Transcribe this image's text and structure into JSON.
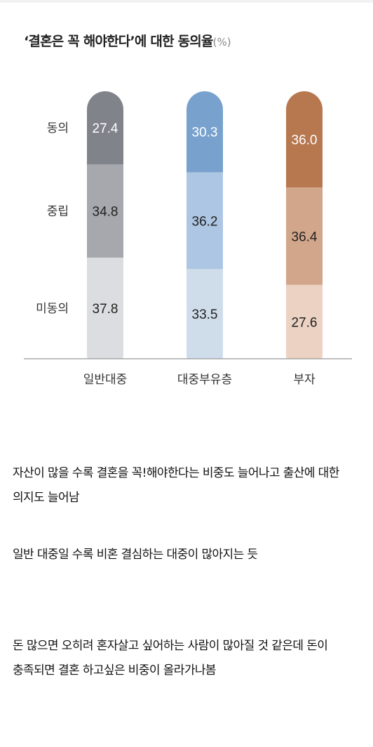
{
  "title": {
    "main": "‘결혼은 꼭 해야한다’에 대한 동의율",
    "unit": "(%)"
  },
  "chart_data": {
    "type": "bar",
    "stacked": true,
    "title": "‘결혼은 꼭 해야한다’에 대한 동의율(%)",
    "categories": [
      "일반대중",
      "대중부유층",
      "부자"
    ],
    "series": [
      {
        "name": "동의",
        "values": [
          27.4,
          30.3,
          36.0
        ],
        "value_labels": [
          "27.4",
          "30.3",
          "36.0"
        ],
        "colors": [
          "#80848a",
          "#78a2cd",
          "#b77850"
        ]
      },
      {
        "name": "중립",
        "values": [
          34.8,
          36.2,
          36.4
        ],
        "value_labels": [
          "34.8",
          "36.2",
          "36.4"
        ],
        "colors": [
          "#a6a8ad",
          "#adc6e3",
          "#d2a68a"
        ]
      },
      {
        "name": "미동의",
        "values": [
          37.8,
          33.5,
          27.6
        ],
        "value_labels": [
          "37.8",
          "33.5",
          "27.6"
        ],
        "colors": [
          "#dcdde0",
          "#cfddeb",
          "#ebd2c3"
        ]
      }
    ],
    "ylim": [
      0,
      100
    ],
    "grid": false,
    "legend": "left"
  },
  "paragraphs": [
    "자산이 많을 수록 결혼을 꼭!해야한다는 비중도 늘어나고 출산에 대한 의지도 늘어남",
    "일반 대중일 수록 비혼 결심하는 대중이 많아지는 듯",
    "돈 많으면 오히려 혼자살고 싶어하는 사람이 많아질 것 같은데 돈이 충족되면 결혼 하고싶은 비중이 올라가나봄"
  ],
  "colors": {
    "background": "#ffffff",
    "axis": "#999999",
    "label_dark_segment": "#ffffff",
    "label_light_segment": "#222222"
  }
}
